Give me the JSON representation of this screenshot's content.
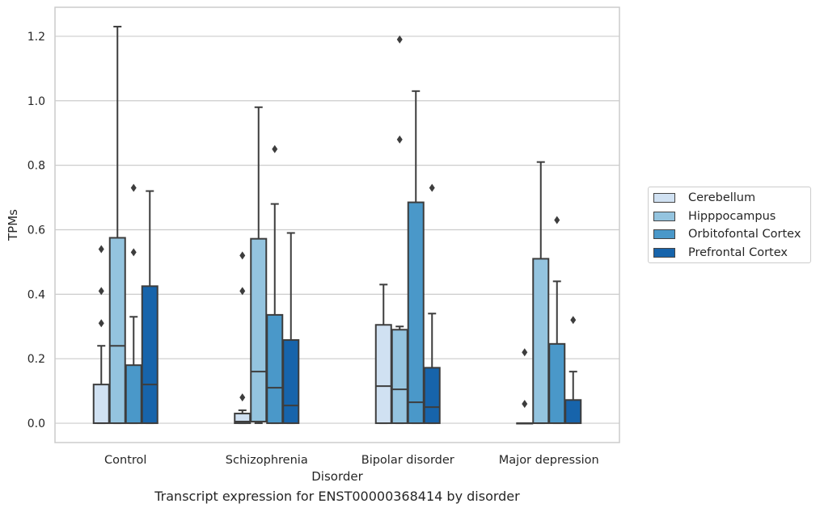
{
  "chart_data": {
    "type": "box",
    "title": "",
    "caption": "Transcript expression for ENST00000368414 by disorder",
    "xlabel": "Disorder",
    "ylabel": "TPMs",
    "ylim": [
      -0.06,
      1.29
    ],
    "yticks": [
      0.0,
      0.2,
      0.4,
      0.6,
      0.8,
      1.0,
      1.2
    ],
    "ytick_labels": [
      "0.0",
      "0.2",
      "0.4",
      "0.6",
      "0.8",
      "1.0",
      "1.2"
    ],
    "grid": "horizontal",
    "legend_position": "right",
    "categories": [
      "Control",
      "Schizophrenia",
      "Bipolar disorder",
      "Major depression"
    ],
    "series": [
      {
        "name": "Cerebellum",
        "color": "#d0e1f2",
        "boxes": [
          {
            "q1": 0.0,
            "median": 0.0,
            "q3": 0.12,
            "whisker_low": 0.0,
            "whisker_high": 0.24,
            "outliers": [
              0.31,
              0.41,
              0.54
            ]
          },
          {
            "q1": 0.0,
            "median": 0.005,
            "q3": 0.03,
            "whisker_low": 0.0,
            "whisker_high": 0.04,
            "outliers": [
              0.08,
              0.41,
              0.52
            ]
          },
          {
            "q1": 0.0,
            "median": 0.115,
            "q3": 0.305,
            "whisker_low": 0.0,
            "whisker_high": 0.43,
            "outliers": []
          },
          {
            "q1": 0.0,
            "median": 0.0,
            "q3": 0.0,
            "whisker_low": 0.0,
            "whisker_high": 0.0,
            "outliers": [
              0.06,
              0.22
            ]
          }
        ]
      },
      {
        "name": "Hipppocampus",
        "color": "#94c4df",
        "boxes": [
          {
            "q1": 0.0,
            "median": 0.24,
            "q3": 0.575,
            "whisker_low": 0.0,
            "whisker_high": 1.23,
            "outliers": []
          },
          {
            "q1": 0.005,
            "median": 0.16,
            "q3": 0.572,
            "whisker_low": 0.0,
            "whisker_high": 0.98,
            "outliers": []
          },
          {
            "q1": 0.0,
            "median": 0.105,
            "q3": 0.29,
            "whisker_low": 0.0,
            "whisker_high": 0.3,
            "outliers": [
              0.88,
              1.19
            ]
          },
          {
            "q1": 0.0,
            "median": 0.0,
            "q3": 0.51,
            "whisker_low": 0.0,
            "whisker_high": 0.81,
            "outliers": []
          }
        ]
      },
      {
        "name": "Orbitofontal Cortex",
        "color": "#4a98c9",
        "boxes": [
          {
            "q1": 0.0,
            "median": 0.0,
            "q3": 0.18,
            "whisker_low": 0.0,
            "whisker_high": 0.33,
            "outliers": [
              0.53,
              0.73
            ]
          },
          {
            "q1": 0.0,
            "median": 0.11,
            "q3": 0.336,
            "whisker_low": 0.0,
            "whisker_high": 0.68,
            "outliers": [
              0.85
            ]
          },
          {
            "q1": 0.0,
            "median": 0.065,
            "q3": 0.685,
            "whisker_low": 0.0,
            "whisker_high": 1.03,
            "outliers": []
          },
          {
            "q1": 0.0,
            "median": 0.0,
            "q3": 0.246,
            "whisker_low": 0.0,
            "whisker_high": 0.44,
            "outliers": [
              0.63
            ]
          }
        ]
      },
      {
        "name": "Prefrontal Cortex",
        "color": "#1764ab",
        "boxes": [
          {
            "q1": 0.0,
            "median": 0.12,
            "q3": 0.425,
            "whisker_low": 0.0,
            "whisker_high": 0.72,
            "outliers": []
          },
          {
            "q1": 0.0,
            "median": 0.055,
            "q3": 0.258,
            "whisker_low": 0.0,
            "whisker_high": 0.59,
            "outliers": []
          },
          {
            "q1": 0.0,
            "median": 0.05,
            "q3": 0.172,
            "whisker_low": 0.0,
            "whisker_high": 0.34,
            "outliers": [
              0.73
            ]
          },
          {
            "q1": 0.0,
            "median": 0.0,
            "q3": 0.072,
            "whisker_low": 0.0,
            "whisker_high": 0.16,
            "outliers": [
              0.32
            ]
          }
        ]
      }
    ]
  }
}
